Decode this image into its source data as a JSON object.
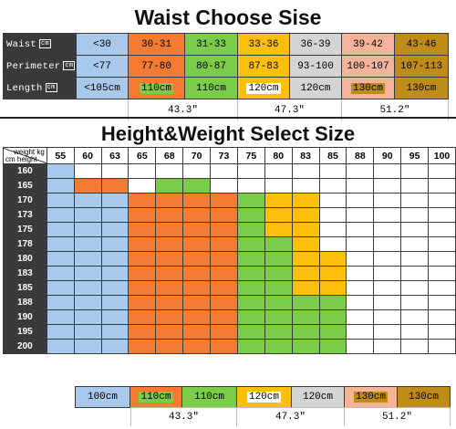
{
  "colors": {
    "blue": "#a8c8ec",
    "orange": "#f47b30",
    "green": "#7bcc48",
    "yellow": "#fcbf0a",
    "gray": "#d4d4d4",
    "salmon": "#f5b49a",
    "gold": "#bf8c1a",
    "white": "#ffffff",
    "dark": "#3a3a3a"
  },
  "waist_table": {
    "title": "Waist Choose Sise",
    "unit_tag": "cm",
    "rows": [
      {
        "label": "Waist",
        "cells": [
          "<30",
          "30-31",
          "31-33",
          "33-36",
          "36-39",
          "39-42",
          "43-46"
        ]
      },
      {
        "label": "Perimeter",
        "cells": [
          "<77",
          "77-80",
          "80-87",
          "87-83",
          "93-100",
          "100-107",
          "107-113"
        ]
      },
      {
        "label": "Length",
        "cells": [
          "<105cm",
          "110cm",
          "110cm",
          "120cm",
          "120cm",
          "130cm",
          "130cm"
        ]
      }
    ],
    "inch_labels": [
      "43.3\"",
      "47.3\"",
      "51.2\""
    ]
  },
  "size_grid": {
    "title": "Height&Weight Select Size",
    "corner_weight": "weight kg",
    "corner_height": "cm height",
    "weights": [
      "55",
      "60",
      "63",
      "65",
      "68",
      "70",
      "73",
      "75",
      "80",
      "83",
      "85",
      "88",
      "90",
      "95",
      "100"
    ],
    "heights": [
      "160",
      "165",
      "170",
      "173",
      "175",
      "178",
      "180",
      "183",
      "185",
      "188",
      "190",
      "195",
      "200"
    ],
    "rows": [
      "BWWWWWWWWWWWWWW",
      "BOOWGGWWWWWWWWW",
      "BBBOOOOGYYWWWWW",
      "BBBOOOOGYYWWWWW",
      "BBBOOOOGYYWWWWW",
      "BBBOOOOGGYWWWWW",
      "BBBOOOOGGYYWWWW",
      "BBBOOOOGGYYWWWW",
      "BBBOOOOGGYYWWWW",
      "BBBOOOOGGGGWWWW",
      "BBBOOOOGGGGWWWW",
      "BBBOOOOGGGGWWWW",
      "BBBOOOOGGGGWWWW"
    ]
  },
  "bottom_sizes": [
    "100cm",
    "110cm",
    "110cm",
    "120cm",
    "120cm",
    "130cm",
    "130cm"
  ],
  "bottom_inch_labels": [
    "43.3\"",
    "47.3\"",
    "51.2\""
  ]
}
